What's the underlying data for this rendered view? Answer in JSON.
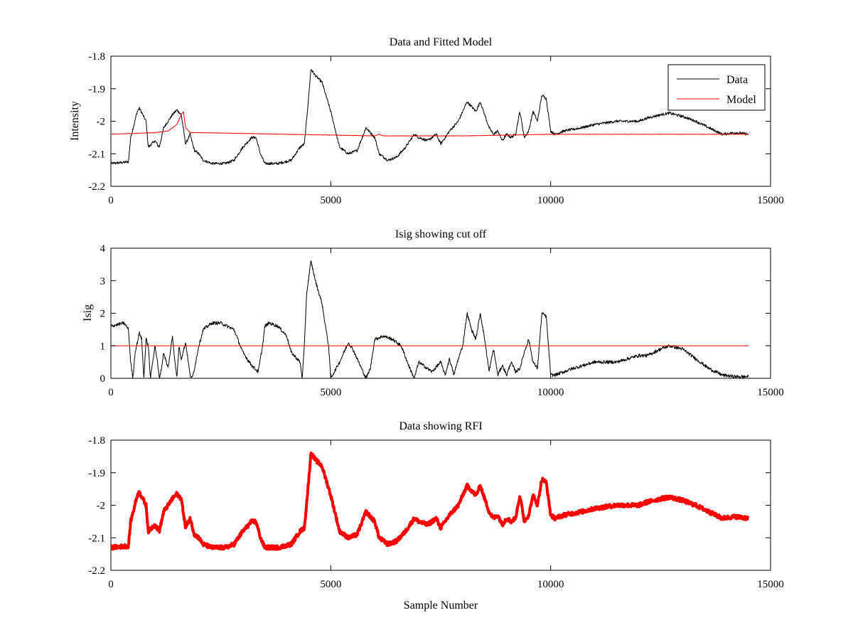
{
  "chart_data": [
    {
      "type": "line",
      "title": "Data and Fitted Model",
      "xlabel": "",
      "ylabel": "Intensity",
      "xlim": [
        0,
        15000
      ],
      "ylim": [
        -2.2,
        -1.8
      ],
      "x_ticks": [
        "0",
        "5000",
        "10000",
        "15000"
      ],
      "y_ticks": [
        "-1.8",
        "-1.9",
        "-2",
        "-2.1",
        "-2.2"
      ],
      "legend": "top-right",
      "grid": false,
      "series": [
        {
          "name": "Data",
          "color": "#000000",
          "noise": 0.004,
          "x": [
            0,
            400,
            450,
            600,
            650,
            800,
            850,
            1000,
            1100,
            1200,
            1400,
            1500,
            1600,
            1700,
            1800,
            1900,
            2000,
            2100,
            2300,
            2600,
            2800,
            3000,
            3200,
            3300,
            3400,
            3500,
            3800,
            4100,
            4300,
            4400,
            4500,
            4550,
            4650,
            4800,
            5000,
            5200,
            5400,
            5600,
            5800,
            6000,
            6100,
            6300,
            6500,
            6700,
            6900,
            7000,
            7200,
            7400,
            7500,
            7700,
            7900,
            8100,
            8300,
            8400,
            8600,
            8700,
            8800,
            8900,
            9000,
            9100,
            9200,
            9300,
            9400,
            9500,
            9600,
            9700,
            9800,
            9900,
            10000,
            10100,
            10300,
            10700,
            11000,
            11500,
            12000,
            12200,
            12500,
            12700,
            13000,
            13300,
            13600,
            13900,
            14200,
            14500
          ],
          "values": [
            -2.13,
            -2.125,
            -2.05,
            -1.97,
            -1.96,
            -2.0,
            -2.08,
            -2.06,
            -2.08,
            -2.02,
            -1.98,
            -1.965,
            -1.98,
            -2.07,
            -2.04,
            -2.09,
            -2.1,
            -2.12,
            -2.13,
            -2.13,
            -2.12,
            -2.08,
            -2.05,
            -2.05,
            -2.1,
            -2.13,
            -2.13,
            -2.12,
            -2.08,
            -2.07,
            -1.92,
            -1.84,
            -1.86,
            -1.88,
            -1.97,
            -2.08,
            -2.1,
            -2.09,
            -2.02,
            -2.05,
            -2.1,
            -2.12,
            -2.11,
            -2.08,
            -2.04,
            -2.05,
            -2.06,
            -2.04,
            -2.07,
            -2.03,
            -2.0,
            -1.94,
            -1.97,
            -1.94,
            -2.02,
            -2.04,
            -2.03,
            -2.06,
            -2.04,
            -2.05,
            -2.04,
            -1.97,
            -2.05,
            -2.03,
            -1.97,
            -2.0,
            -1.92,
            -1.93,
            -2.03,
            -2.04,
            -2.03,
            -2.02,
            -2.01,
            -2.0,
            -2.0,
            -1.99,
            -1.98,
            -1.975,
            -1.985,
            -2.0,
            -2.02,
            -2.04,
            -2.035,
            -2.04
          ]
        },
        {
          "name": "Model",
          "color": "#ff0000",
          "noise": 0.0005,
          "x": [
            0,
            1000,
            1300,
            1500,
            1600,
            1650,
            1700,
            1800,
            2000,
            4000,
            6000,
            6100,
            6200,
            8000,
            10000,
            14500
          ],
          "values": [
            -2.04,
            -2.035,
            -2.03,
            -2.01,
            -1.98,
            -1.97,
            -2.02,
            -2.035,
            -2.035,
            -2.04,
            -2.045,
            -2.04,
            -2.045,
            -2.045,
            -2.04,
            -2.04
          ]
        }
      ]
    },
    {
      "type": "line",
      "title": "Isig showing cut off",
      "xlabel": "",
      "ylabel": "Isig",
      "xlim": [
        0,
        15000
      ],
      "ylim": [
        0,
        4
      ],
      "x_ticks": [
        "0",
        "5000",
        "10000",
        "15000"
      ],
      "y_ticks": [
        "4",
        "3",
        "2",
        "1",
        "0"
      ],
      "grid": false,
      "series": [
        {
          "color": "#000000",
          "noise": 0.05,
          "clip_min": 0,
          "x": [
            0,
            300,
            400,
            450,
            500,
            550,
            650,
            700,
            750,
            800,
            850,
            900,
            950,
            1000,
            1050,
            1100,
            1150,
            1200,
            1300,
            1400,
            1450,
            1500,
            1550,
            1600,
            1700,
            1800,
            1850,
            1900,
            2000,
            2100,
            2300,
            2500,
            2800,
            3000,
            3200,
            3350,
            3450,
            3500,
            3600,
            3800,
            4000,
            4100,
            4300,
            4350,
            4400,
            4450,
            4550,
            4650,
            4800,
            4950,
            5000,
            5200,
            5400,
            5500,
            5700,
            5800,
            5900,
            6000,
            6200,
            6400,
            6600,
            6800,
            6900,
            7000,
            7300,
            7500,
            7600,
            7700,
            7800,
            7900,
            8000,
            8100,
            8200,
            8300,
            8400,
            8500,
            8600,
            8700,
            8800,
            8900,
            9000,
            9100,
            9200,
            9300,
            9400,
            9500,
            9600,
            9700,
            9800,
            9900,
            10000,
            10100,
            10500,
            11000,
            11500,
            12000,
            12200,
            12500,
            12700,
            13000,
            13300,
            13600,
            13900,
            14200,
            14500
          ],
          "values": [
            1.6,
            1.7,
            1.5,
            0.5,
            0.0,
            0.8,
            1.4,
            1.2,
            0.0,
            1.2,
            1.0,
            0.0,
            0.5,
            1.0,
            0.6,
            0.0,
            0.3,
            0.8,
            0.3,
            1.3,
            0.6,
            0.0,
            1.0,
            0.6,
            1.1,
            0.1,
            0.0,
            0.3,
            1.0,
            1.5,
            1.7,
            1.7,
            1.5,
            0.8,
            0.4,
            0.2,
            1.0,
            1.6,
            1.7,
            1.6,
            1.3,
            0.8,
            0.5,
            0.0,
            1.0,
            2.6,
            3.6,
            3.0,
            2.3,
            1.0,
            0.0,
            0.5,
            1.1,
            0.9,
            0.3,
            0.0,
            0.3,
            1.2,
            1.3,
            1.2,
            1.0,
            0.3,
            0.0,
            0.5,
            0.2,
            0.5,
            0.1,
            0.6,
            0.1,
            0.6,
            1.0,
            2.0,
            1.5,
            1.2,
            2.0,
            1.2,
            0.2,
            0.9,
            0.1,
            0.4,
            0.1,
            0.5,
            0.2,
            0.3,
            0.8,
            1.2,
            0.5,
            0.3,
            2.0,
            1.9,
            0.1,
            0.1,
            0.3,
            0.5,
            0.5,
            0.7,
            0.7,
            0.9,
            1.0,
            0.9,
            0.6,
            0.3,
            0.1,
            0.05,
            0.05
          ]
        },
        {
          "color": "#ff0000",
          "noise": 0,
          "x": [
            0,
            14500
          ],
          "values": [
            1,
            1
          ]
        }
      ]
    },
    {
      "type": "line",
      "title": "Data showing RFI",
      "xlabel": "Sample Number",
      "ylabel": "",
      "xlim": [
        0,
        15000
      ],
      "ylim": [
        -2.2,
        -1.8
      ],
      "x_ticks": [
        "0",
        "5000",
        "10000",
        "15000"
      ],
      "y_ticks": [
        "-1.8",
        "-1.9",
        "-2",
        "-2.1",
        "-2.2"
      ],
      "grid": false,
      "series": [
        {
          "color": "#ff0000",
          "noise": 0.006,
          "line_width": 4,
          "same_as": "Data"
        }
      ]
    }
  ]
}
